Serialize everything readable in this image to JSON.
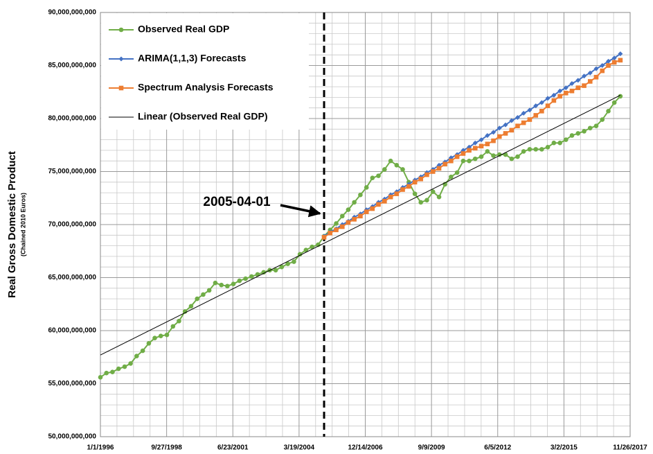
{
  "chart_data": {
    "type": "line",
    "ylabel": "Real Gross Domestic Product",
    "ylabel_sub": "(Chained 2010 Euros)",
    "ylim": [
      50000000000.0,
      90000000000.0
    ],
    "yticks": [
      {
        "value": 50000000000.0,
        "label": "50,000,000,000"
      },
      {
        "value": 55000000000.0,
        "label": "55,000,000,000"
      },
      {
        "value": 60000000000.0,
        "label": "60,000,000,000"
      },
      {
        "value": 65000000000.0,
        "label": "65,000,000,000"
      },
      {
        "value": 70000000000.0,
        "label": "70,000,000,000"
      },
      {
        "value": 75000000000.0,
        "label": "75,000,000,000"
      },
      {
        "value": 80000000000.0,
        "label": "80,000,000,000"
      },
      {
        "value": 85000000000.0,
        "label": "85,000,000,000"
      },
      {
        "value": 90000000000.0,
        "label": "90,000,000,000"
      }
    ],
    "xlim": [
      "1996-01-01",
      "2017-11-26"
    ],
    "xticks": [
      {
        "value": "1996-01-01",
        "label": "1/1/1996"
      },
      {
        "value": "1998-09-27",
        "label": "9/27/1998"
      },
      {
        "value": "2001-06-23",
        "label": "6/23/2001"
      },
      {
        "value": "2004-03-19",
        "label": "3/19/2004"
      },
      {
        "value": "2006-12-14",
        "label": "12/14/2006"
      },
      {
        "value": "2009-09-09",
        "label": "9/9/2009"
      },
      {
        "value": "2012-06-05",
        "label": "6/5/2012"
      },
      {
        "value": "2015-03-02",
        "label": "3/2/2015"
      },
      {
        "value": "2017-11-26",
        "label": "11/26/2017"
      }
    ],
    "grid": true,
    "minor_grid": {
      "x": 4,
      "y": 5
    },
    "legend": "upper left",
    "annotation": {
      "text": "2005-04-01",
      "x": "2005-04-01"
    },
    "series": [
      {
        "name": "Observed Real GDP",
        "color": "#70ad47",
        "marker": "circle",
        "start": "1996-01-01",
        "values": [
          55600000000.0,
          56000000000.0,
          56100000000.0,
          56400000000.0,
          56600000000.0,
          56900000000.0,
          57600000000.0,
          58100000000.0,
          58800000000.0,
          59300000000.0,
          59500000000.0,
          59600000000.0,
          60400000000.0,
          60900000000.0,
          61800000000.0,
          62300000000.0,
          63000000000.0,
          63400000000.0,
          63800000000.0,
          64500000000.0,
          64300000000.0,
          64200000000.0,
          64400000000.0,
          64700000000.0,
          64900000000.0,
          65100000000.0,
          65300000000.0,
          65500000000.0,
          65700000000.0,
          65700000000.0,
          66000000000.0,
          66300000000.0,
          66500000000.0,
          67200000000.0,
          67600000000.0,
          67900000000.0,
          68100000000.0,
          68900000000.0,
          69500000000.0,
          70100000000.0,
          70800000000.0,
          71400000000.0,
          72100000000.0,
          72800000000.0,
          73500000000.0,
          74400000000.0,
          74600000000.0,
          75200000000.0,
          76000000000.0,
          75600000000.0,
          75200000000.0,
          74000000000.0,
          72900000000.0,
          72100000000.0,
          72300000000.0,
          73100000000.0,
          72600000000.0,
          73800000000.0,
          74500000000.0,
          74900000000.0,
          76000000000.0,
          76000000000.0,
          76200000000.0,
          76400000000.0,
          76900000000.0,
          76500000000.0,
          76600000000.0,
          76600000000.0,
          76200000000.0,
          76400000000.0,
          76900000000.0,
          77100000000.0,
          77100000000.0,
          77100000000.0,
          77300000000.0,
          77700000000.0,
          77700000000.0,
          78000000000.0,
          78400000000.0,
          78600000000.0,
          78800000000.0,
          79100000000.0,
          79300000000.0,
          79900000000.0,
          80700000000.0,
          81500000000.0,
          82100000000.0
        ]
      },
      {
        "name": "ARIMA(1,1,3) Forecasts",
        "color": "#4472c4",
        "marker": "diamond",
        "start": "2005-04-01",
        "values": [
          68900000000.0,
          69300000000.0,
          69600000000.0,
          70000000000.0,
          70300000000.0,
          70700000000.0,
          71000000000.0,
          71400000000.0,
          71700000000.0,
          72100000000.0,
          72400000000.0,
          72800000000.0,
          73100000000.0,
          73500000000.0,
          73800000000.0,
          74200000000.0,
          74500000000.0,
          74900000000.0,
          75200000000.0,
          75600000000.0,
          75900000000.0,
          76300000000.0,
          76600000000.0,
          77000000000.0,
          77300000000.0,
          77700000000.0,
          78000000000.0,
          78400000000.0,
          78700000000.0,
          79100000000.0,
          79400000000.0,
          79800000000.0,
          80100000000.0,
          80500000000.0,
          80800000000.0,
          81200000000.0,
          81500000000.0,
          81900000000.0,
          82200000000.0,
          82600000000.0,
          82900000000.0,
          83300000000.0,
          83600000000.0,
          84000000000.0,
          84300000000.0,
          84700000000.0,
          85000000000.0,
          85400000000.0,
          85700000000.0,
          86100000000.0
        ]
      },
      {
        "name": "Spectrum Analysis Forecasts",
        "color": "#ed7d31",
        "marker": "square",
        "start": "2005-04-01",
        "values": [
          68800000000.0,
          69200000000.0,
          69500000000.0,
          69800000000.0,
          70200000000.0,
          70500000000.0,
          70800000000.0,
          71200000000.0,
          71500000000.0,
          71900000000.0,
          72200000000.0,
          72600000000.0,
          72900000000.0,
          73300000000.0,
          73600000000.0,
          74000000000.0,
          74300000000.0,
          74700000000.0,
          75000000000.0,
          75300000000.0,
          75700000000.0,
          76000000000.0,
          76400000000.0,
          76700000000.0,
          77000000000.0,
          77200000000.0,
          77400000000.0,
          77600000000.0,
          77900000000.0,
          78300000000.0,
          78600000000.0,
          78900000000.0,
          79300000000.0,
          79600000000.0,
          79900000000.0,
          80300000000.0,
          80700000000.0,
          81200000000.0,
          81700000000.0,
          82100000000.0,
          82400000000.0,
          82600000000.0,
          82900000000.0,
          83100000000.0,
          83500000000.0,
          83900000000.0,
          84500000000.0,
          85000000000.0,
          85300000000.0,
          85500000000.0
        ]
      },
      {
        "name": "Linear (Observed Real GDP)",
        "color": "#000000",
        "marker": "none",
        "x": [
          "1996-01-01",
          "2017-07-01"
        ],
        "values": [
          57700000000.0,
          82200000000.0
        ]
      }
    ]
  }
}
